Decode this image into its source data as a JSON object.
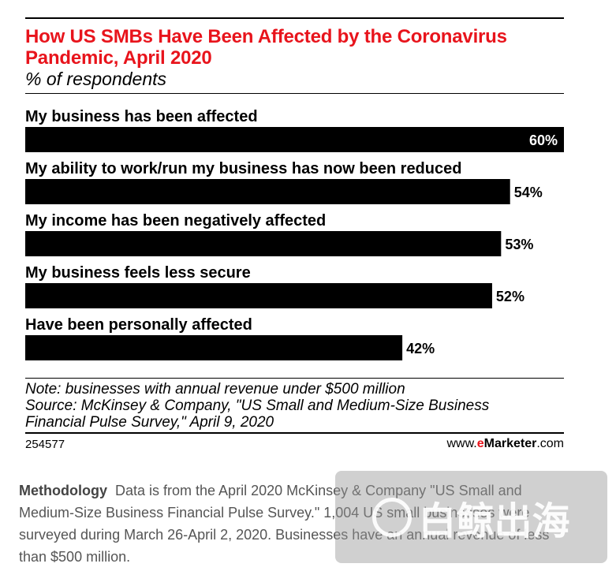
{
  "chart_data": {
    "type": "bar",
    "orientation": "horizontal",
    "title": "How US SMBs Have Been Affected by the Coronavirus Pandemic, April 2020",
    "subtitle": "% of respondents",
    "categories": [
      "My business has been affected",
      "My ability to work/run my business has now been reduced",
      "My income has been negatively affected",
      "My business feels less secure",
      "Have been personally affected"
    ],
    "values": [
      60,
      54,
      53,
      52,
      42
    ],
    "value_labels": [
      "60%",
      "54%",
      "53%",
      "52%",
      "42%"
    ],
    "xlim": [
      0,
      60
    ],
    "bar_color": "#000000",
    "grid": false
  },
  "title_color": "#e8141c",
  "note": {
    "line1": "Note: businesses with annual revenue under $500 million",
    "line2": "Source: McKinsey & Company, \"US Small and Medium-Size Business",
    "line3": "Financial Pulse Survey,\" April 9, 2020"
  },
  "footer": {
    "chart_id": "254577",
    "brand_prefix": "www.",
    "brand_e": "e",
    "brand_name": "Marketer",
    "brand_suffix": ".com"
  },
  "methodology": {
    "heading": "Methodology",
    "text": "Data is from the April 2020 McKinsey & Company \"US Small and Medium-Size Business Financial Pulse Survey.\" 1,004 US small businesses were surveyed during March 26-April 2, 2020. Businesses have an annual revenue of less than $500 million."
  },
  "watermark": {
    "text": "白鲸出海"
  }
}
